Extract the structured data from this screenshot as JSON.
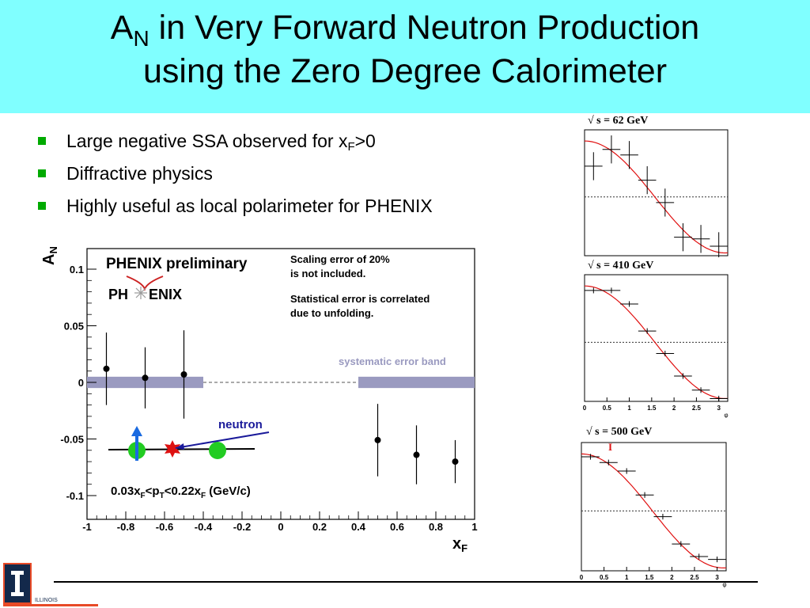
{
  "slide": {
    "title_line1_pre": "A",
    "title_line1_sub": "N",
    "title_line1_post": " in Very Forward Neutron Production",
    "title_line2": "using the Zero Degree Calorimeter"
  },
  "bullets": [
    {
      "pre": "Large negative SSA observed for x",
      "sub": "F",
      "post": ">0"
    },
    {
      "pre": "Diffractive physics",
      "sub": "",
      "post": ""
    },
    {
      "pre": "Highly useful as local polarimeter for PHENIX",
      "sub": "",
      "post": ""
    }
  ],
  "colors": {
    "title_band": "#80ffff",
    "bullet": "#00aa00",
    "band": "#9a9ac0",
    "fit_line": "#e01010",
    "neutron_label": "#1a1a9a",
    "proton": "#22cc22"
  },
  "main_plot": {
    "preliminary": "PHENIX preliminary",
    "logo_left": "PH",
    "logo_right": "ENIX",
    "note1_line1": "Scaling error of 20%",
    "note1_line2": "is not included.",
    "note2_line1": "Statistical error is correlated",
    "note2_line2": "due to unfolding.",
    "band_label": "systematic error band",
    "neutron_label": "neutron",
    "cut_label": "0.03x_F<p_T<0.22x_F (GeV/c)",
    "ylabel": "A_N",
    "xlabel": "x_F"
  },
  "small_plots": [
    {
      "label": "√ s = 62 GeV"
    },
    {
      "label": "√ s = 410 GeV",
      "x_ticks": [
        "0",
        "0.5",
        "1",
        "1.5",
        "2",
        "2.5",
        "3"
      ],
      "x_unit": "φ"
    },
    {
      "label": "√ s = 500 GeV",
      "marker": "I",
      "x_ticks": [
        "0",
        "0.5",
        "1",
        "1.5",
        "2",
        "2.5",
        "3"
      ],
      "x_unit": "φ"
    }
  ],
  "logo": {
    "text": "ILLINOIS"
  },
  "chart_data": [
    {
      "type": "scatter",
      "title": "PHENIX preliminary",
      "xlabel": "x_F",
      "ylabel": "A_N",
      "xlim": [
        -1,
        1
      ],
      "ylim": [
        -0.11,
        0.12
      ],
      "x_ticks": [
        "-1",
        "-0.8",
        "-0.6",
        "-0.4",
        "-0.2",
        "0",
        "0.2",
        "0.4",
        "0.6",
        "0.8",
        "1"
      ],
      "y_ticks": [
        "0.1",
        "0.05",
        "0",
        "-0.05",
        "-0.1"
      ],
      "points": [
        {
          "x": -0.9,
          "y": 0.012,
          "err": 0.032
        },
        {
          "x": -0.7,
          "y": 0.004,
          "err": 0.027
        },
        {
          "x": -0.5,
          "y": 0.007,
          "err": 0.039
        },
        {
          "x": 0.5,
          "y": -0.051,
          "err": 0.032
        },
        {
          "x": 0.7,
          "y": -0.064,
          "err": 0.026
        },
        {
          "x": 0.9,
          "y": -0.07,
          "err": 0.019
        }
      ],
      "systematic_band": [
        {
          "x_from": -1.0,
          "x_to": -0.4,
          "y_low": -0.005,
          "y_high": 0.005
        },
        {
          "x_from": 0.4,
          "x_to": 1.0,
          "y_low": -0.005,
          "y_high": 0.005
        }
      ]
    },
    {
      "type": "scatter",
      "title": "√ s = 62 GeV",
      "xlim": [
        0,
        3.2
      ],
      "ylim": [
        -1.05,
        1.2
      ],
      "points": [
        {
          "x": 0.2,
          "y": 0.55,
          "xerr": 0.2,
          "yerr": 0.25
        },
        {
          "x": 0.6,
          "y": 0.85,
          "xerr": 0.2,
          "yerr": 0.25
        },
        {
          "x": 1.0,
          "y": 0.75,
          "xerr": 0.2,
          "yerr": 0.25
        },
        {
          "x": 1.4,
          "y": 0.3,
          "xerr": 0.2,
          "yerr": 0.25
        },
        {
          "x": 1.8,
          "y": -0.1,
          "xerr": 0.2,
          "yerr": 0.25
        },
        {
          "x": 2.2,
          "y": -0.72,
          "xerr": 0.2,
          "yerr": 0.25
        },
        {
          "x": 2.6,
          "y": -0.75,
          "xerr": 0.2,
          "yerr": 0.25
        },
        {
          "x": 3.0,
          "y": -0.88,
          "xerr": 0.2,
          "yerr": 0.25
        }
      ],
      "fit": "cosine"
    },
    {
      "type": "scatter",
      "title": "√ s = 410 GeV",
      "xlim": [
        0,
        3.2
      ],
      "ylim": [
        -1.05,
        1.2
      ],
      "points": [
        {
          "x": 0.2,
          "y": 0.92,
          "xerr": 0.2,
          "yerr": 0.05
        },
        {
          "x": 0.6,
          "y": 0.92,
          "xerr": 0.2,
          "yerr": 0.05
        },
        {
          "x": 1.0,
          "y": 0.68,
          "xerr": 0.2,
          "yerr": 0.05
        },
        {
          "x": 1.4,
          "y": 0.2,
          "xerr": 0.2,
          "yerr": 0.05
        },
        {
          "x": 1.8,
          "y": -0.2,
          "xerr": 0.2,
          "yerr": 0.05
        },
        {
          "x": 2.2,
          "y": -0.6,
          "xerr": 0.2,
          "yerr": 0.05
        },
        {
          "x": 2.6,
          "y": -0.85,
          "xerr": 0.2,
          "yerr": 0.05
        },
        {
          "x": 3.0,
          "y": -1.0,
          "xerr": 0.2,
          "yerr": 0.05
        }
      ],
      "fit": "cosine"
    },
    {
      "type": "scatter",
      "title": "√ s = 500 GeV",
      "xlim": [
        0,
        3.2
      ],
      "ylim": [
        -1.05,
        1.2
      ],
      "points": [
        {
          "x": 0.2,
          "y": 0.95,
          "xerr": 0.2,
          "yerr": 0.05
        },
        {
          "x": 0.6,
          "y": 0.85,
          "xerr": 0.2,
          "yerr": 0.05
        },
        {
          "x": 1.0,
          "y": 0.7,
          "xerr": 0.2,
          "yerr": 0.05
        },
        {
          "x": 1.4,
          "y": 0.28,
          "xerr": 0.2,
          "yerr": 0.05
        },
        {
          "x": 1.8,
          "y": -0.1,
          "xerr": 0.2,
          "yerr": 0.05
        },
        {
          "x": 2.2,
          "y": -0.58,
          "xerr": 0.2,
          "yerr": 0.05
        },
        {
          "x": 2.6,
          "y": -0.8,
          "xerr": 0.2,
          "yerr": 0.05
        },
        {
          "x": 3.0,
          "y": -0.85,
          "xerr": 0.2,
          "yerr": 0.05
        }
      ],
      "fit": "cosine"
    }
  ]
}
